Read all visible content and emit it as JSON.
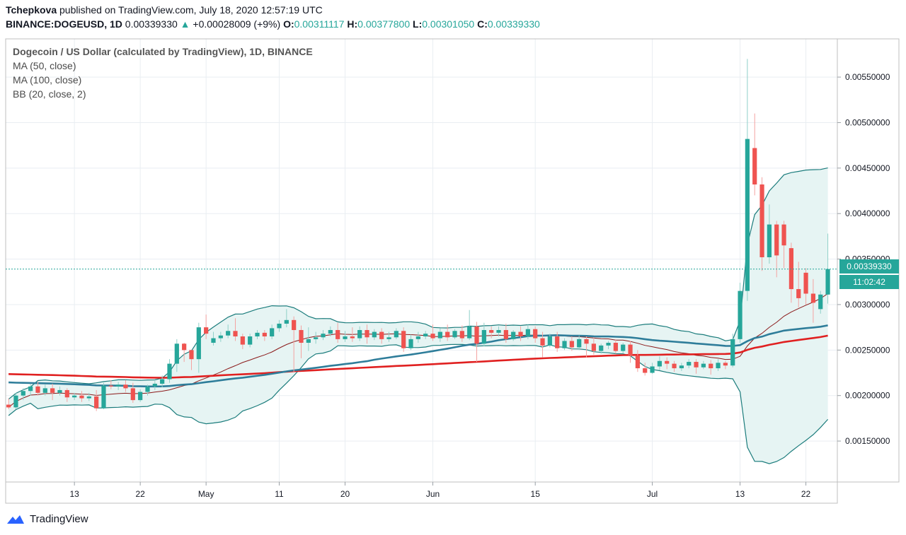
{
  "header": {
    "author": "Tchepkova",
    "published_text": "published on TradingView.com, July 18, 2020 12:57:19 UTC",
    "symbol": "BINANCE:DOGEUSD, 1D",
    "last": "0.00339330",
    "change": "+0.00028009 (+9%)",
    "o_label": "O:",
    "o": "0.00311117",
    "h_label": "H:",
    "h": "0.00377800",
    "l_label": "L:",
    "l": "0.00301050",
    "c_label": "C:",
    "c": "0.00339330"
  },
  "legend": {
    "title": "Dogecoin / US Dollar (calculated by TradingView), 1D, BINANCE",
    "ma50": "MA (50, close)",
    "ma100": "MA (100, close)",
    "bb": "BB (20, close, 2)"
  },
  "price_tags": {
    "last_price": "0.00339330",
    "countdown": "11:02:42"
  },
  "footer": {
    "brand": "TradingView"
  },
  "colors": {
    "up": "#26a69a",
    "down": "#ef5350",
    "ma50": "#2e7d9a",
    "ma100": "#e02020",
    "bb_band": "#1b7c7c",
    "bb_basis": "#8b1a1a",
    "bb_fill": "#e6f4f3"
  },
  "chart_data": {
    "type": "candlestick",
    "y_ticks": [
      "0.00550000",
      "0.00500000",
      "0.00450000",
      "0.00400000",
      "0.00350000",
      "0.00300000",
      "0.00250000",
      "0.00200000",
      "0.00150000"
    ],
    "y_tick_values": [
      0.0055,
      0.005,
      0.0045,
      0.004,
      0.0035,
      0.003,
      0.0025,
      0.002,
      0.0015
    ],
    "ylim": [
      0.00105,
      0.00592
    ],
    "x_ticks": [
      {
        "label": "13",
        "day": 13
      },
      {
        "label": "22",
        "day": 22
      },
      {
        "label": "May",
        "day": 31
      },
      {
        "label": "11",
        "day": 41
      },
      {
        "label": "20",
        "day": 50
      },
      {
        "label": "Jun",
        "day": 62
      },
      {
        "label": "15",
        "day": 76
      },
      {
        "label": "Jul",
        "day": 92
      },
      {
        "label": "13",
        "day": 104
      },
      {
        "label": "22",
        "day": 113
      }
    ],
    "xlim": [
      3.6,
      117.3
    ],
    "candles_start_day": 4,
    "candles": [
      [
        0.0019,
        0.00197,
        0.00187,
        0.00185
      ],
      [
        0.00187,
        0.00203,
        0.002,
        0.00185
      ],
      [
        0.002,
        0.00208,
        0.00205,
        0.00195
      ],
      [
        0.00205,
        0.00213,
        0.0021,
        0.002
      ],
      [
        0.0021,
        0.00215,
        0.00203,
        0.002
      ],
      [
        0.00203,
        0.00212,
        0.00208,
        0.002
      ],
      [
        0.00208,
        0.00213,
        0.00203,
        0.00195
      ],
      [
        0.00203,
        0.0021,
        0.00206,
        0.002
      ],
      [
        0.00206,
        0.00208,
        0.00198,
        0.00193
      ],
      [
        0.00198,
        0.00203,
        0.002,
        0.00195
      ],
      [
        0.002,
        0.00205,
        0.00197,
        0.00193
      ],
      [
        0.00197,
        0.00203,
        0.00199,
        0.00194
      ],
      [
        0.00199,
        0.00206,
        0.00186,
        0.00183
      ],
      [
        0.00186,
        0.00214,
        0.00211,
        0.00185
      ],
      [
        0.00211,
        0.00217,
        0.0021,
        0.00207
      ],
      [
        0.0021,
        0.00215,
        0.00212,
        0.00206
      ],
      [
        0.00212,
        0.00217,
        0.00208,
        0.00204
      ],
      [
        0.00208,
        0.00214,
        0.00195,
        0.00192
      ],
      [
        0.00195,
        0.00207,
        0.00204,
        0.00193
      ],
      [
        0.00204,
        0.00212,
        0.0021,
        0.002
      ],
      [
        0.0021,
        0.00216,
        0.00213,
        0.00206
      ],
      [
        0.00213,
        0.00222,
        0.00218,
        0.00209
      ],
      [
        0.00218,
        0.0024,
        0.00235,
        0.00214
      ],
      [
        0.00235,
        0.00262,
        0.00257,
        0.00226
      ],
      [
        0.00257,
        0.00258,
        0.0025,
        0.00237
      ],
      [
        0.0025,
        0.0025,
        0.0024,
        0.00228
      ],
      [
        0.0024,
        0.0028,
        0.00275,
        0.00225
      ],
      [
        0.00275,
        0.00289,
        0.00268,
        0.00262
      ],
      [
        0.00258,
        0.0027,
        0.00263,
        0.00255
      ],
      [
        0.00263,
        0.0027,
        0.00266,
        0.00259
      ],
      [
        0.00266,
        0.00278,
        0.00271,
        0.00263
      ],
      [
        0.00271,
        0.00285,
        0.00265,
        0.0026
      ],
      [
        0.00265,
        0.00268,
        0.00256,
        0.00251
      ],
      [
        0.00256,
        0.00268,
        0.00265,
        0.00253
      ],
      [
        0.00265,
        0.00272,
        0.00269,
        0.00262
      ],
      [
        0.00269,
        0.00272,
        0.00265,
        0.0026
      ],
      [
        0.00265,
        0.00278,
        0.00274,
        0.00262
      ],
      [
        0.00274,
        0.00283,
        0.00279,
        0.0027
      ],
      [
        0.00279,
        0.00295,
        0.00283,
        0.00275
      ],
      [
        0.00283,
        0.00287,
        0.00272,
        0.00226
      ],
      [
        0.00272,
        0.00277,
        0.00258,
        0.00241
      ],
      [
        0.00258,
        0.00275,
        0.00262,
        0.00249
      ],
      [
        0.00262,
        0.0027,
        0.00264,
        0.00257
      ],
      [
        0.00264,
        0.00272,
        0.00268,
        0.00261
      ],
      [
        0.00268,
        0.00276,
        0.00272,
        0.00265
      ],
      [
        0.00272,
        0.0028,
        0.00262,
        0.00258
      ],
      [
        0.00262,
        0.00271,
        0.00265,
        0.00259
      ],
      [
        0.00265,
        0.00275,
        0.00263,
        0.00259
      ],
      [
        0.00263,
        0.00276,
        0.00272,
        0.0026
      ],
      [
        0.00272,
        0.00278,
        0.00264,
        0.00257
      ],
      [
        0.00264,
        0.00273,
        0.0027,
        0.00261
      ],
      [
        0.0027,
        0.00274,
        0.00262,
        0.00257
      ],
      [
        0.00262,
        0.0027,
        0.00264,
        0.00259
      ],
      [
        0.00264,
        0.00274,
        0.00271,
        0.00262
      ],
      [
        0.00271,
        0.00275,
        0.00252,
        0.00248
      ],
      [
        0.00252,
        0.00267,
        0.00262,
        0.0025
      ],
      [
        0.00262,
        0.0027,
        0.00265,
        0.00258
      ],
      [
        0.00265,
        0.00271,
        0.00268,
        0.00262
      ],
      [
        0.00268,
        0.00278,
        0.00263,
        0.0026
      ],
      [
        0.00263,
        0.00274,
        0.0027,
        0.00259
      ],
      [
        0.0027,
        0.00278,
        0.00264,
        0.0026
      ],
      [
        0.00264,
        0.00273,
        0.00271,
        0.00262
      ],
      [
        0.00271,
        0.00277,
        0.00263,
        0.00259
      ],
      [
        0.00263,
        0.00294,
        0.00276,
        0.00261
      ],
      [
        0.00276,
        0.00281,
        0.00257,
        0.00237
      ],
      [
        0.00257,
        0.0028,
        0.00272,
        0.00254
      ],
      [
        0.00272,
        0.00276,
        0.00269,
        0.00263
      ],
      [
        0.00269,
        0.00276,
        0.00272,
        0.00265
      ],
      [
        0.00272,
        0.00279,
        0.00262,
        0.00258
      ],
      [
        0.00262,
        0.00272,
        0.0027,
        0.0026
      ],
      [
        0.0027,
        0.00276,
        0.00265,
        0.0026
      ],
      [
        0.00265,
        0.00278,
        0.00273,
        0.00262
      ],
      [
        0.00273,
        0.00276,
        0.00263,
        0.00258
      ],
      [
        0.00263,
        0.0027,
        0.00255,
        0.00242
      ],
      [
        0.00255,
        0.00268,
        0.00265,
        0.00253
      ],
      [
        0.00265,
        0.0027,
        0.00252,
        0.00248
      ],
      [
        0.00252,
        0.00263,
        0.0026,
        0.0025
      ],
      [
        0.0026,
        0.00265,
        0.00253,
        0.00249
      ],
      [
        0.00253,
        0.00266,
        0.00262,
        0.0025
      ],
      [
        0.00262,
        0.00265,
        0.00257,
        0.00242
      ],
      [
        0.00257,
        0.00264,
        0.00249,
        0.00245
      ],
      [
        0.00249,
        0.00257,
        0.00255,
        0.00246
      ],
      [
        0.00255,
        0.0026,
        0.00258,
        0.00251
      ],
      [
        0.00258,
        0.00262,
        0.00249,
        0.00246
      ],
      [
        0.00249,
        0.00258,
        0.00256,
        0.00246
      ],
      [
        0.00256,
        0.0026,
        0.00244,
        0.00236
      ],
      [
        0.00244,
        0.0025,
        0.0023,
        0.00226
      ],
      [
        0.0023,
        0.00236,
        0.00225,
        0.00222
      ],
      [
        0.00225,
        0.00236,
        0.00232,
        0.00224
      ],
      [
        0.00232,
        0.00243,
        0.00238,
        0.00228
      ],
      [
        0.00238,
        0.00242,
        0.00235,
        0.00229
      ],
      [
        0.00235,
        0.00238,
        0.0023,
        0.00226
      ],
      [
        0.0023,
        0.00236,
        0.00233,
        0.00227
      ],
      [
        0.00233,
        0.0024,
        0.00237,
        0.0023
      ],
      [
        0.00237,
        0.0024,
        0.00231,
        0.00224
      ],
      [
        0.00231,
        0.00238,
        0.00235,
        0.00229
      ],
      [
        0.00235,
        0.00239,
        0.0023,
        0.00223
      ],
      [
        0.0023,
        0.0024,
        0.00236,
        0.00227
      ],
      [
        0.00236,
        0.00238,
        0.00233,
        0.00229
      ],
      [
        0.00233,
        0.00268,
        0.00262,
        0.00231
      ],
      [
        0.00262,
        0.00324,
        0.00315,
        0.00258
      ],
      [
        0.00315,
        0.0057,
        0.00482,
        0.00304
      ],
      [
        0.00472,
        0.0051,
        0.00432,
        0.0042
      ],
      [
        0.00432,
        0.0044,
        0.00352,
        0.00337
      ],
      [
        0.00352,
        0.0041,
        0.00388,
        0.00345
      ],
      [
        0.00388,
        0.00392,
        0.00354,
        0.0033
      ],
      [
        0.00388,
        0.00392,
        0.00365,
        0.0034
      ],
      [
        0.00362,
        0.00368,
        0.00317,
        0.00302
      ],
      [
        0.00317,
        0.00347,
        0.00307,
        0.00297
      ],
      [
        0.00335,
        0.0034,
        0.00312,
        0.003
      ],
      [
        0.00312,
        0.00328,
        0.00302,
        0.0028
      ],
      [
        0.00295,
        0.00315,
        0.00311,
        0.0029
      ],
      [
        0.00311,
        0.00378,
        0.00339,
        0.00301
      ]
    ]
  }
}
